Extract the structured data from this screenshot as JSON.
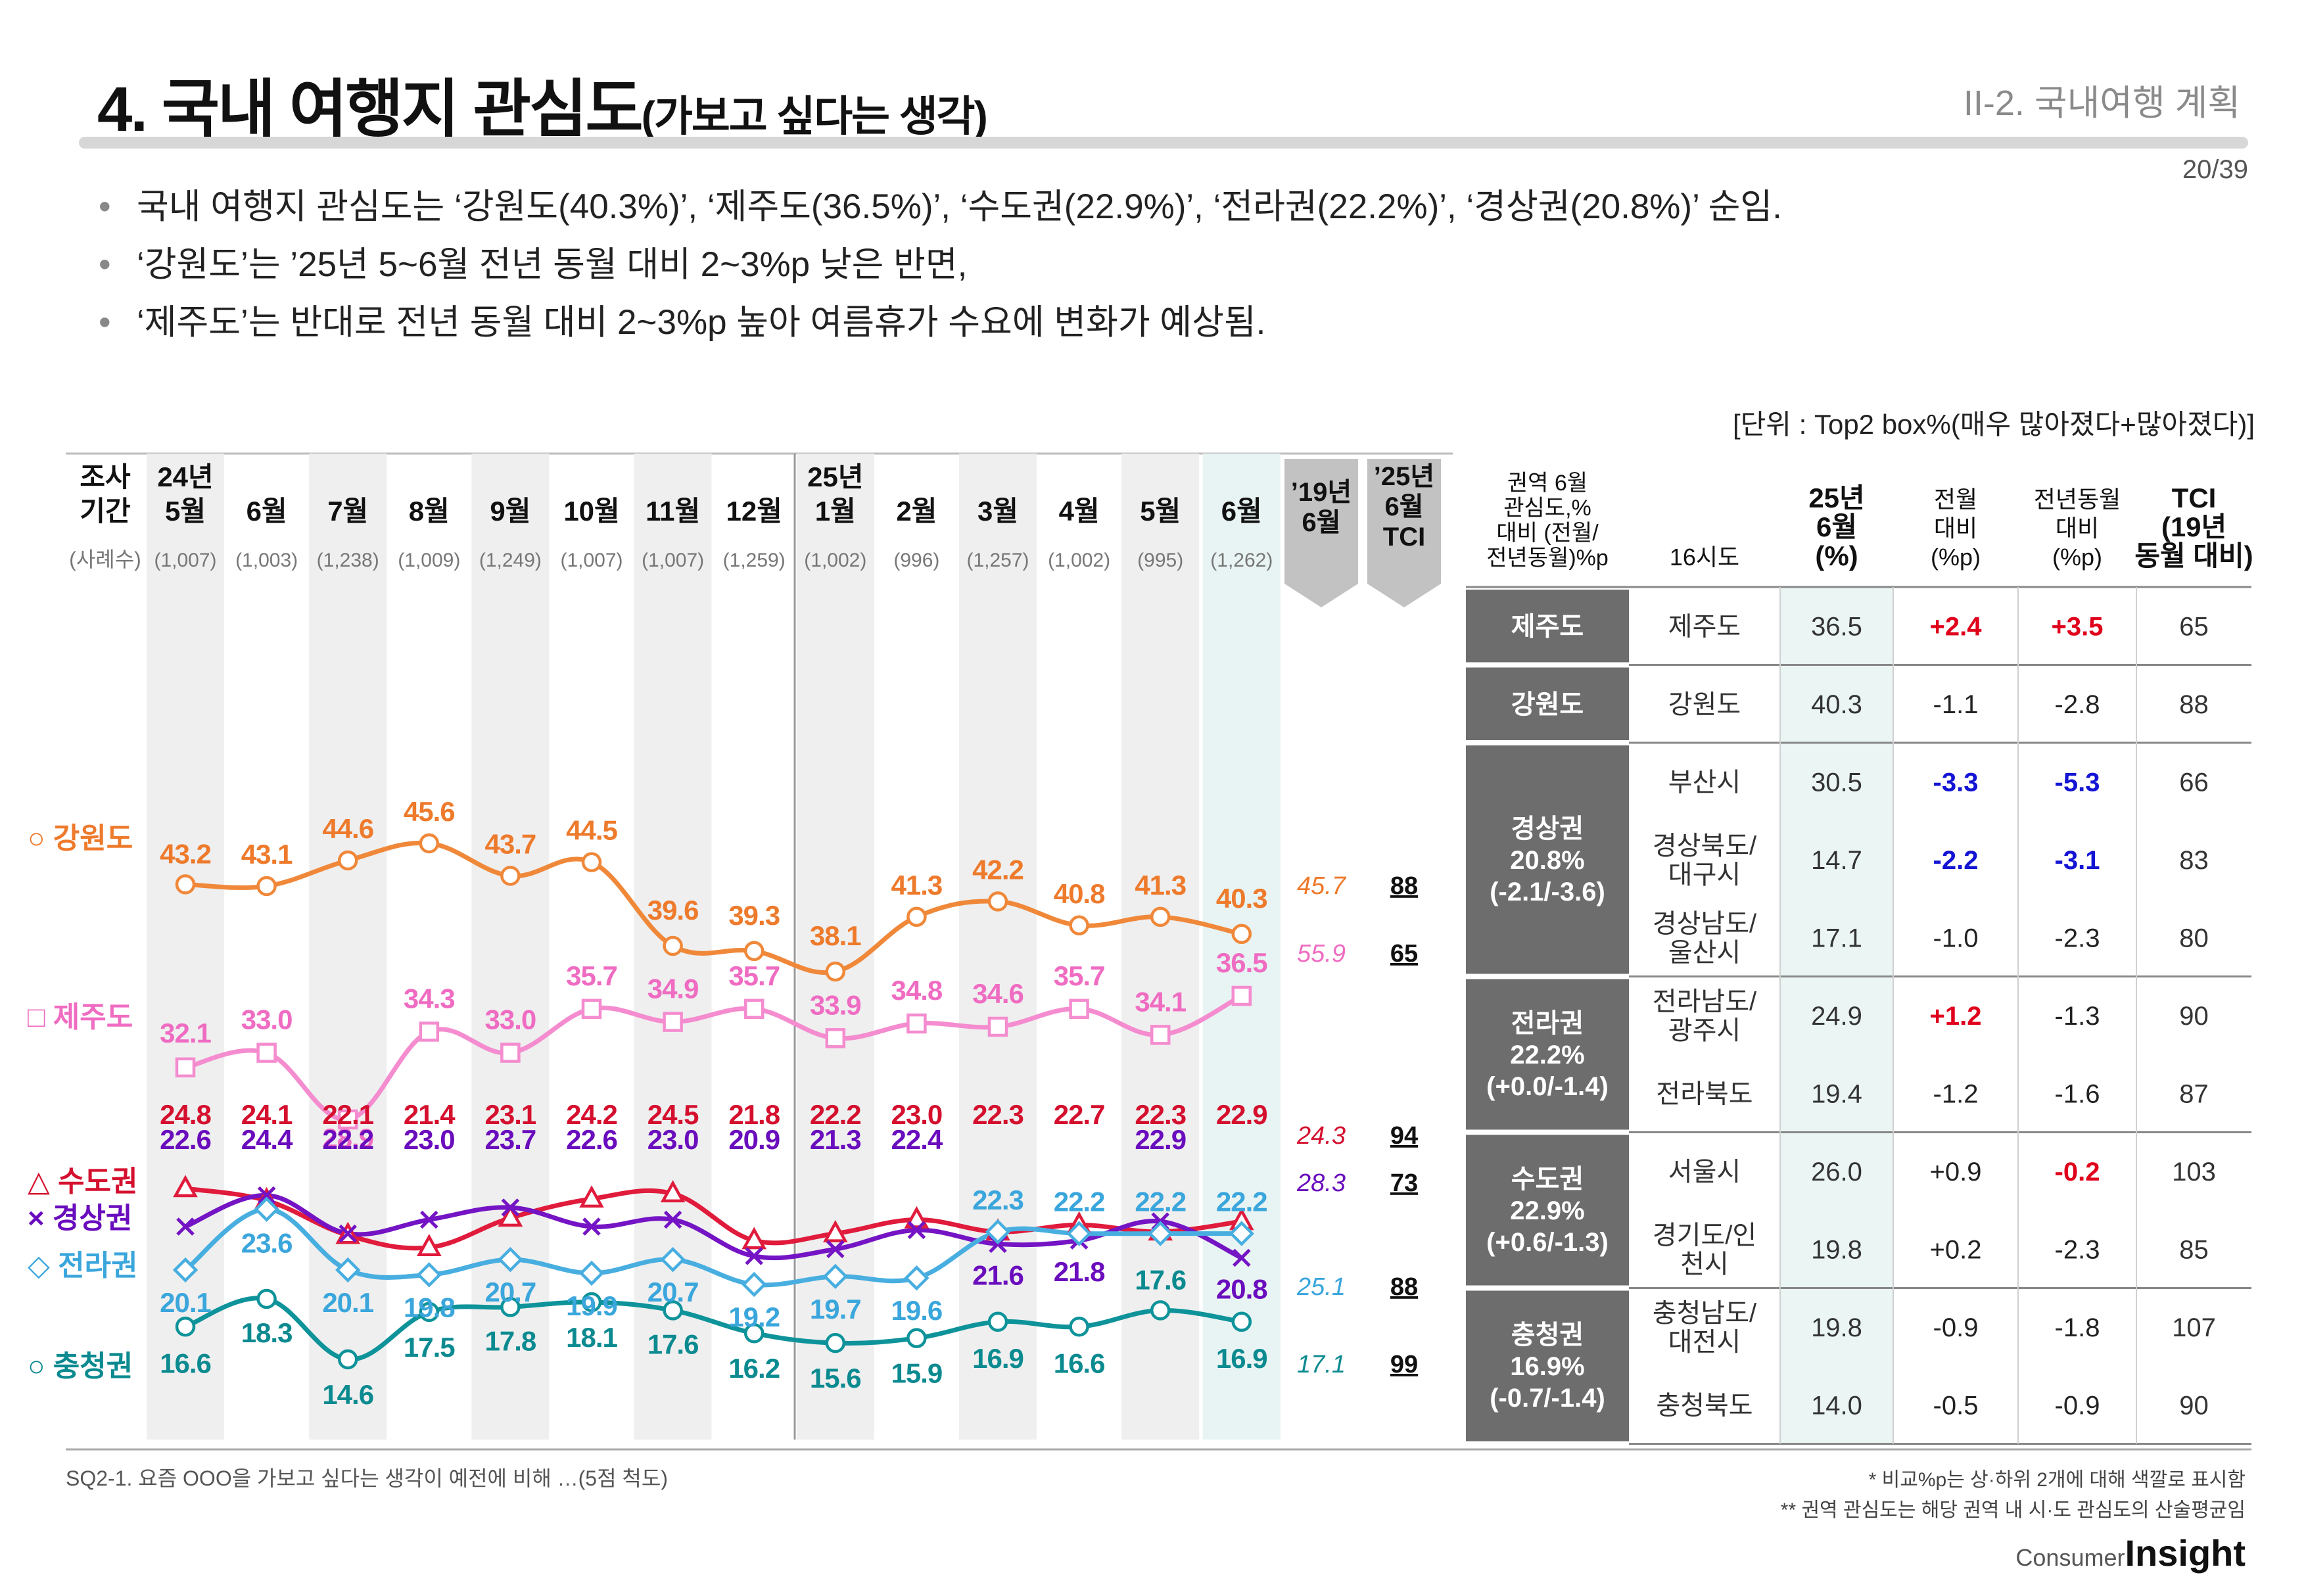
{
  "header": {
    "title": "4. 국내 여행지 관심도",
    "title_sub": "(가보고 싶다는 생각)",
    "section": "II-2. 국내여행 계획",
    "page": "20/39"
  },
  "bullets": [
    "국내 여행지 관심도는 ‘강원도(40.3%)’, ‘제주도(36.5%)’, ‘수도권(22.9%)’, ‘전라권(22.2%)’, ‘경상권(20.8%)’ 순임.",
    "‘강원도’는 ’25년 5~6월 전년 동월 대비 2~3%p 낮은 반면,",
    "‘제주도’는 반대로 전년 동월 대비 2~3%p 높아 여름휴가 수요에 변화가 예상됨."
  ],
  "unit": "[단위 : Top2 box%(매우 많아졌다+많아졌다)]",
  "chart_data": {
    "type": "line",
    "period_label": [
      "조사",
      "기간"
    ],
    "sample_label": "(사례수)",
    "categories": [
      [
        "24년",
        "5월"
      ],
      [
        "6월"
      ],
      [
        "7월"
      ],
      [
        "8월"
      ],
      [
        "9월"
      ],
      [
        "10월"
      ],
      [
        "11월"
      ],
      [
        "12월"
      ],
      [
        "25년",
        "1월"
      ],
      [
        "2월"
      ],
      [
        "3월"
      ],
      [
        "4월"
      ],
      [
        "5월"
      ],
      [
        "6월"
      ]
    ],
    "samples": [
      "(1,007)",
      "(1,003)",
      "(1,238)",
      "(1,009)",
      "(1,249)",
      "(1,007)",
      "(1,007)",
      "(1,259)",
      "(1,002)",
      "(996)",
      "(1,257)",
      "(1,002)",
      "(995)",
      "(1,262)"
    ],
    "ref_headers": [
      [
        "’19년",
        "6월"
      ],
      [
        "’25년",
        "6월",
        "TCI"
      ]
    ],
    "series": [
      {
        "name": "강원도",
        "legend": "○ 강원도",
        "marker": "circle",
        "color": "#f0883a",
        "label_color": "#ee7a2c",
        "values": [
          43.2,
          43.1,
          44.6,
          45.6,
          43.7,
          44.5,
          39.6,
          39.3,
          38.1,
          41.3,
          42.2,
          40.8,
          41.3,
          40.3
        ],
        "labels": [
          "43.2",
          "43.1",
          "44.6",
          "45.6",
          "43.7",
          "44.5",
          "39.6",
          "39.3",
          "38.1",
          "41.3",
          "42.2",
          "40.8",
          "41.3",
          "40.3"
        ],
        "y19": "45.7",
        "tci": "88"
      },
      {
        "name": "제주도",
        "legend": "□ 제주도",
        "marker": "square",
        "color": "#f48ccf",
        "label_color": "#ef6cc2",
        "values": [
          32.1,
          33.0,
          28.9,
          34.3,
          33.0,
          35.7,
          34.9,
          35.7,
          33.9,
          34.8,
          34.6,
          35.7,
          34.1,
          36.5
        ],
        "labels": [
          "32.1",
          "33.0",
          "28.9",
          "34.3",
          "33.0",
          "35.7",
          "34.9",
          "35.7",
          "33.9",
          "34.8",
          "34.6",
          "35.7",
          "34.1",
          "36.5"
        ],
        "y19": "55.9",
        "tci": "65"
      },
      {
        "name": "수도권",
        "legend": "△ 수도권",
        "marker": "triangle",
        "color": "#e01b3c",
        "label_color": "#d4102e",
        "values": [
          24.8,
          24.1,
          22.1,
          21.4,
          23.1,
          24.2,
          24.5,
          21.8,
          22.2,
          23.0,
          22.3,
          22.7,
          22.3,
          22.9
        ],
        "labels": [
          "24.8",
          "24.1",
          "22.1",
          "21.4",
          "23.1",
          "24.2",
          "24.5",
          "21.8",
          "22.2",
          "23.0",
          "22.3",
          "22.7",
          "22.3",
          "22.9"
        ],
        "y19": "24.3",
        "tci": "94"
      },
      {
        "name": "경상권",
        "legend": "× 경상권",
        "marker": "cross",
        "color": "#7414c4",
        "label_color": "#6a0dbd",
        "values": [
          22.6,
          24.4,
          22.2,
          23.0,
          23.7,
          22.6,
          23.0,
          20.9,
          21.3,
          22.4,
          21.6,
          21.8,
          22.9,
          20.8
        ],
        "labels": [
          "22.6",
          "24.4",
          "22.2",
          "23.0",
          "23.7",
          "22.6",
          "23.0",
          "20.9",
          "21.3",
          "22.4",
          "21.6",
          "21.8",
          "22.9",
          "20.8"
        ],
        "y19": "28.3",
        "tci": "73"
      },
      {
        "name": "전라권",
        "legend": "◇ 전라권",
        "marker": "diamond",
        "color": "#48aee0",
        "label_color": "#3aa6dc",
        "values": [
          20.1,
          23.6,
          20.1,
          19.8,
          20.7,
          19.9,
          20.7,
          19.2,
          19.7,
          19.6,
          22.3,
          22.2,
          22.2,
          22.2
        ],
        "labels": [
          "20.1",
          "23.6",
          "20.1",
          "19.8",
          "20.7",
          "19.9",
          "20.7",
          "19.2",
          "19.7",
          "19.6",
          "22.3",
          "22.2",
          "22.2",
          "22.2"
        ],
        "y19": "25.1",
        "tci": "88"
      },
      {
        "name": "충청권",
        "legend": "○ 충청권",
        "marker": "circle",
        "color": "#0e939a",
        "label_color": "#0b8a90",
        "values": [
          16.6,
          18.3,
          14.6,
          17.5,
          17.8,
          18.1,
          17.6,
          16.2,
          15.6,
          15.9,
          16.9,
          16.6,
          17.6,
          16.9
        ],
        "labels": [
          "16.6",
          "18.3",
          "14.6",
          "17.5",
          "17.8",
          "18.1",
          "17.6",
          "16.2",
          "15.6",
          "15.9",
          "16.9",
          "16.6",
          "17.6",
          "16.9"
        ],
        "y19": "17.1",
        "tci": "99"
      }
    ]
  },
  "table": {
    "headers": [
      "권역 6월 관심도,% 대비 (전월/ 전년동월)%p",
      "16시도",
      "25년 6월 (%)",
      "전월 대비 (%p)",
      "전년동월 대비 (%p)",
      "TCI (19년 동월 대비)"
    ],
    "groups": [
      {
        "region": [
          "제주도"
        ],
        "rows": [
          {
            "city": [
              "제주도"
            ],
            "val": "36.5",
            "mom": "+2.4",
            "mom_c": "red",
            "yoy": "+3.5",
            "yoy_c": "red",
            "tci": "65"
          }
        ]
      },
      {
        "region": [
          "강원도"
        ],
        "rows": [
          {
            "city": [
              "강원도"
            ],
            "val": "40.3",
            "mom": "-1.1",
            "mom_c": "",
            "yoy": "-2.8",
            "yoy_c": "",
            "tci": "88"
          }
        ]
      },
      {
        "region": [
          "경상권",
          "20.8%",
          "(-2.1/-3.6)"
        ],
        "rows": [
          {
            "city": [
              "부산시"
            ],
            "val": "30.5",
            "mom": "-3.3",
            "mom_c": "blue",
            "yoy": "-5.3",
            "yoy_c": "blue",
            "tci": "66"
          },
          {
            "city": [
              "경상북도/",
              "대구시"
            ],
            "val": "14.7",
            "mom": "-2.2",
            "mom_c": "blue",
            "yoy": "-3.1",
            "yoy_c": "blue",
            "tci": "83"
          },
          {
            "city": [
              "경상남도/",
              "울산시"
            ],
            "val": "17.1",
            "mom": "-1.0",
            "mom_c": "",
            "yoy": "-2.3",
            "yoy_c": "",
            "tci": "80"
          }
        ]
      },
      {
        "region": [
          "전라권",
          "22.2%",
          "(+0.0/-1.4)"
        ],
        "rows": [
          {
            "city": [
              "전라남도/",
              "광주시"
            ],
            "val": "24.9",
            "mom": "+1.2",
            "mom_c": "red",
            "yoy": "-1.3",
            "yoy_c": "",
            "tci": "90"
          },
          {
            "city": [
              "전라북도"
            ],
            "val": "19.4",
            "mom": "-1.2",
            "mom_c": "",
            "yoy": "-1.6",
            "yoy_c": "",
            "tci": "87"
          }
        ]
      },
      {
        "region": [
          "수도권",
          "22.9%",
          "(+0.6/-1.3)"
        ],
        "rows": [
          {
            "city": [
              "서울시"
            ],
            "val": "26.0",
            "mom": "+0.9",
            "mom_c": "",
            "yoy": "-0.2",
            "yoy_c": "red",
            "tci": "103"
          },
          {
            "city": [
              "경기도/인",
              "천시"
            ],
            "val": "19.8",
            "mom": "+0.2",
            "mom_c": "",
            "yoy": "-2.3",
            "yoy_c": "",
            "tci": "85"
          }
        ]
      },
      {
        "region": [
          "충청권",
          "16.9%",
          "(-0.7/-1.4)"
        ],
        "rows": [
          {
            "city": [
              "충청남도/",
              "대전시"
            ],
            "val": "19.8",
            "mom": "-0.9",
            "mom_c": "",
            "yoy": "-1.8",
            "yoy_c": "",
            "tci": "107"
          },
          {
            "city": [
              "충청북도"
            ],
            "val": "14.0",
            "mom": "-0.5",
            "mom_c": "",
            "yoy": "-0.9",
            "yoy_c": "",
            "tci": "90"
          }
        ]
      }
    ]
  },
  "footnote": "SQ2-1. 요즘 OOO을 가보고 싶다는 생각이 예전에 비해 …(5점 척도)",
  "notes": [
    "* 비교%p는 상·하위 2개에 대해 색깔로 표시함",
    "** 권역 관심도는 해당 권역 내 시·도 관심도의 산술평균임"
  ],
  "logo": {
    "top": "Consumer",
    "bottom": "Insight"
  }
}
